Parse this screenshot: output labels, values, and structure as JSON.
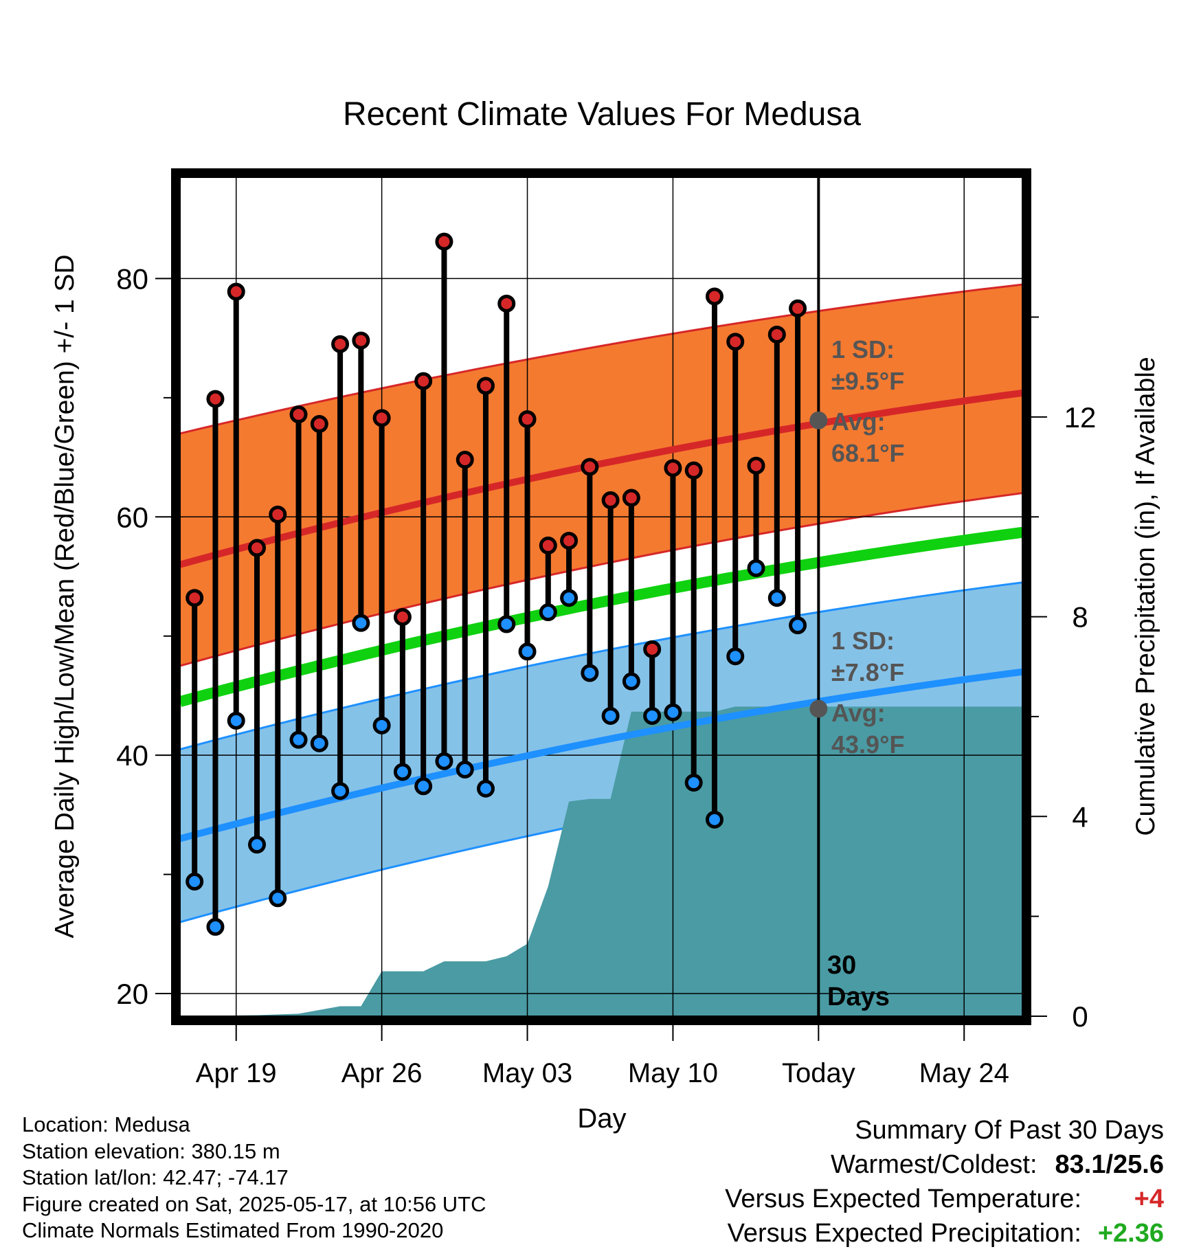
{
  "title": "Recent Climate Values For Medusa",
  "chart_data": {
    "type": "line",
    "title": "Recent Climate Values For Medusa",
    "xlabel": "Day",
    "ylabel": "Average Daily High/Low/Mean (Red/Blue/Green) +/- 1 SD",
    "y2label": "Cumulative Precipitation (in), If Available",
    "ylim": [
      18.1,
      88.5
    ],
    "y_ticks": [
      20,
      40,
      60,
      80
    ],
    "y2lim": [
      0,
      16.8
    ],
    "y2_ticks": [
      0,
      4,
      8,
      12
    ],
    "x_ticks": [
      "Apr 19",
      "Apr 26",
      "May 03",
      "May 10",
      "Today",
      "May 24"
    ],
    "x_tick_days": [
      19,
      26,
      33,
      40,
      47,
      54
    ],
    "x_range_days": [
      16.3,
      56.8
    ],
    "today_day": 47,
    "today_marker_label": "30 Days",
    "grid": true,
    "days": [
      17,
      18,
      19,
      20,
      21,
      22,
      23,
      24,
      25,
      26,
      27,
      28,
      29,
      30,
      31,
      32,
      33,
      34,
      35,
      36,
      37,
      38,
      39,
      40,
      41,
      42,
      43,
      44,
      45,
      46
    ],
    "observed_high": [
      53.2,
      69.9,
      78.9,
      57.4,
      60.2,
      68.6,
      67.8,
      74.5,
      74.8,
      68.3,
      51.6,
      71.4,
      83.1,
      64.8,
      71.0,
      77.9,
      68.2,
      57.6,
      58.0,
      64.2,
      61.4,
      61.6,
      48.9,
      64.1,
      63.9,
      78.5,
      74.7,
      64.3,
      75.3,
      77.5
    ],
    "observed_low": [
      29.4,
      25.6,
      42.9,
      32.5,
      28.0,
      41.3,
      41.0,
      37.0,
      51.1,
      42.5,
      38.6,
      37.4,
      39.5,
      38.8,
      37.2,
      51.0,
      48.7,
      52.0,
      53.2,
      46.9,
      43.3,
      46.2,
      43.3,
      43.6,
      37.7,
      34.6,
      48.3,
      55.7,
      53.2,
      50.9
    ],
    "normal_high": [
      56.0,
      70.4
    ],
    "normal_low": [
      33.0,
      47.0
    ],
    "normal_mean": [
      44.5,
      58.7
    ],
    "high_band": [
      [
        47.5,
        67.0
      ],
      [
        62.0,
        79.5
      ]
    ],
    "low_band": [
      [
        26.0,
        40.5
      ],
      [
        40.5,
        54.5
      ]
    ],
    "precip_cumulative": {
      "day": [
        16.3,
        20,
        22,
        24,
        25,
        26,
        27,
        28,
        29,
        30,
        31,
        32,
        33,
        34,
        35,
        36,
        37,
        38,
        39,
        40,
        41,
        42,
        43,
        44,
        46,
        56.8
      ],
      "value": [
        0,
        0.02,
        0.05,
        0.2,
        0.2,
        0.9,
        0.9,
        0.9,
        1.1,
        1.1,
        1.1,
        1.2,
        1.45,
        2.6,
        4.3,
        4.35,
        4.35,
        6.1,
        6.1,
        6.1,
        6.1,
        6.1,
        6.2,
        6.2,
        6.2,
        6.2
      ]
    },
    "colors": {
      "high_band": "#f47a30",
      "low_band": "#85c2e8",
      "normal_high": "#d62728",
      "normal_low": "#1e90ff",
      "normal_mean": "#0fd10f",
      "precip": "#4a9ba4",
      "high_marker": "#d62728",
      "low_marker": "#1e90ff",
      "annotation": "#555555"
    },
    "annotations": {
      "high": {
        "sd_label": "1 SD:",
        "sd_value": "±9.5°F",
        "avg_label": "Avg:",
        "avg_value": "68.1°F",
        "value": 68.1
      },
      "low": {
        "sd_label": "1 SD:",
        "sd_value": "±7.8°F",
        "avg_label": "Avg:",
        "avg_value": "43.9°F",
        "value": 43.9
      }
    }
  },
  "footer": {
    "location": "Location: Medusa",
    "elevation": "Station elevation: 380.15 m",
    "latlon": "Station lat/lon: 42.47; -74.17",
    "created": "Figure created on Sat, 2025-05-17, at 10:56 UTC",
    "normals": "Climate Normals Estimated From 1990-2020"
  },
  "summary": {
    "title": "Summary Of Past 30 Days",
    "warmest_label": "Warmest/Coldest:",
    "warmest_value": "83.1/25.6",
    "temp_label": "Versus Expected Temperature:",
    "temp_value": "+4",
    "precip_label": "Versus Expected Precipitation:",
    "precip_value": "+2.36"
  }
}
